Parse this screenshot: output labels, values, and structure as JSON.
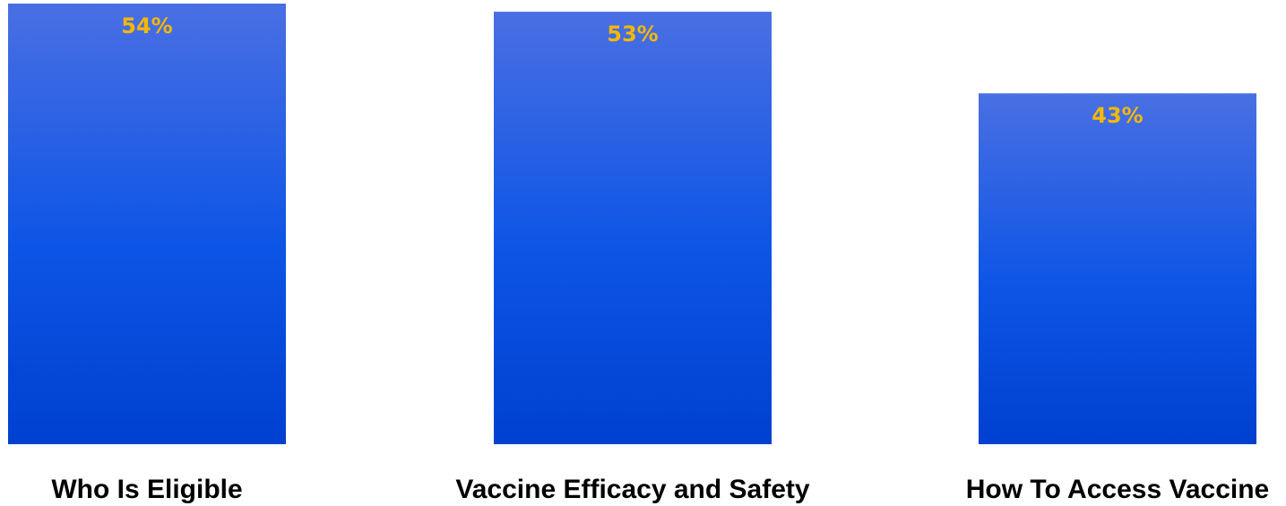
{
  "chart_data": {
    "type": "bar",
    "categories": [
      "Who Is Eligible",
      "Vaccine Efficacy and Safety",
      "How To Access Vaccine"
    ],
    "values": [
      54,
      53,
      43
    ],
    "data_labels": [
      "54%",
      "53%",
      "43%"
    ],
    "title": "",
    "xlabel": "",
    "ylabel": "",
    "ylim": [
      0,
      54
    ],
    "grid": false,
    "legend": "none"
  },
  "colors": {
    "bar_top": "#4A6FE3",
    "bar_mid": "#0D55E6",
    "bar_bottom": "#0040D0",
    "value_label": "#F5B800",
    "category_label": "#000000"
  }
}
